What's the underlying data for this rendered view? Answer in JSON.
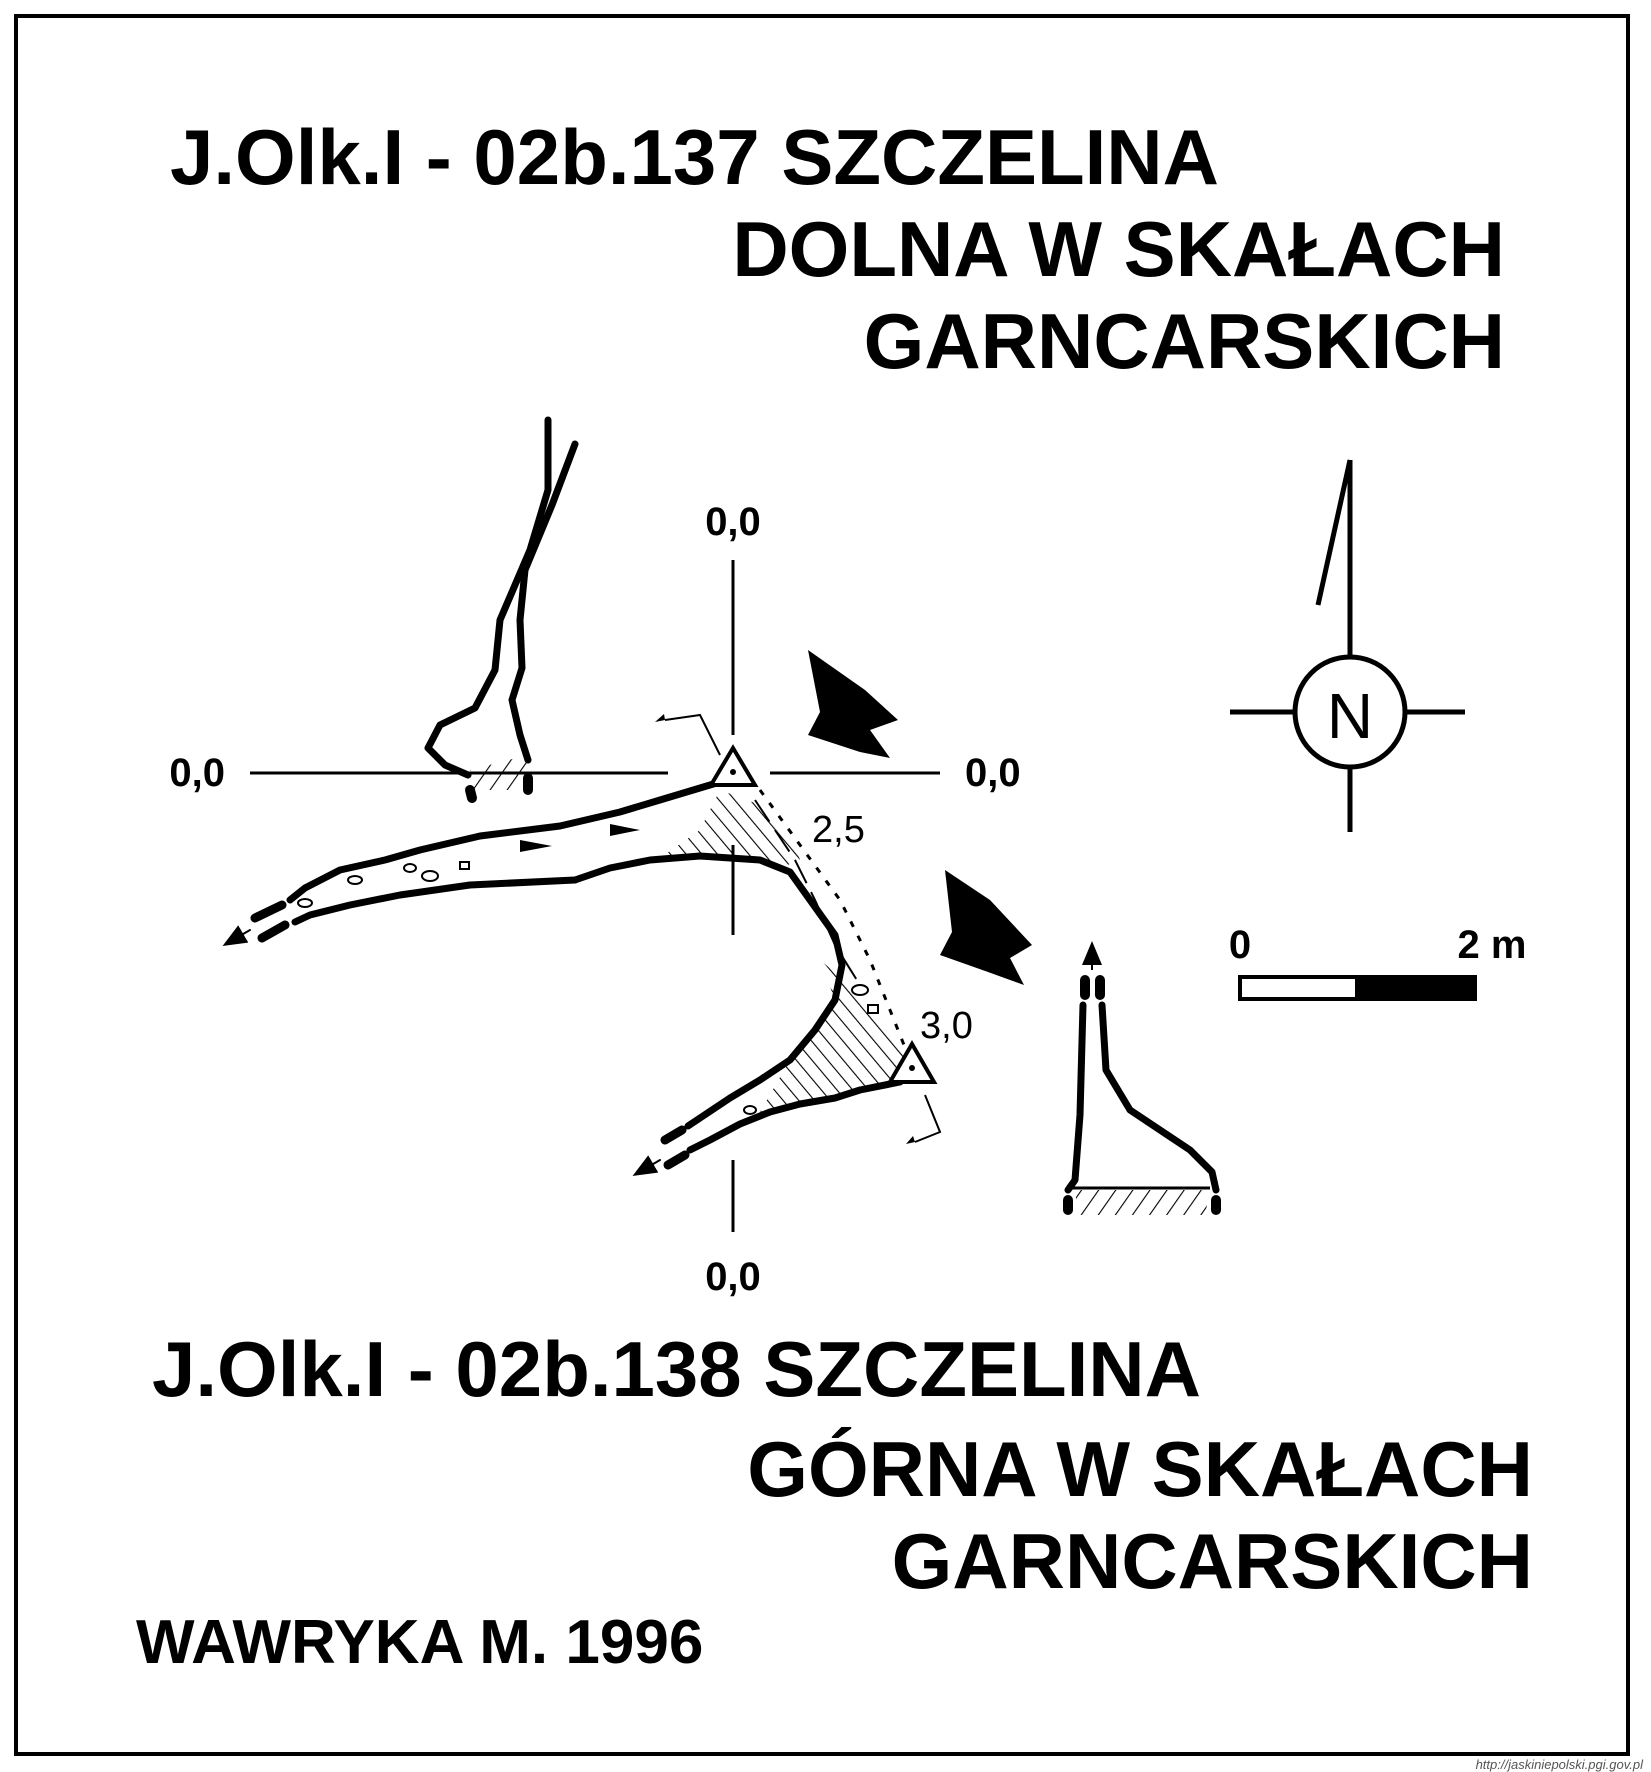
{
  "cave_upper": {
    "line1": "J.Olk.I - 02b.137  SZCZELINA",
    "line2": "DOLNA W SKAŁACH",
    "line3": "GARNCARSKICH"
  },
  "cave_lower": {
    "line1": "J.Olk.I - 02b.138  SZCZELINA",
    "line2": "GÓRNA W SKAŁACH",
    "line3": "GARNCARSKICH"
  },
  "author": "WAWRYKA M. 1996",
  "source": "http://jaskiniepolski.pgi.gov.pl",
  "axes": {
    "top": "0,0",
    "bottom": "0,0",
    "left": "0,0",
    "right": "0,0"
  },
  "depths": {
    "upper": "2,5",
    "lower": "3,0"
  },
  "north": {
    "label": "N",
    "icon": "north-arrow-icon"
  },
  "scale": {
    "start": "0",
    "end": "2 m"
  },
  "colors": {
    "ink": "#000000",
    "paper": "#ffffff"
  }
}
